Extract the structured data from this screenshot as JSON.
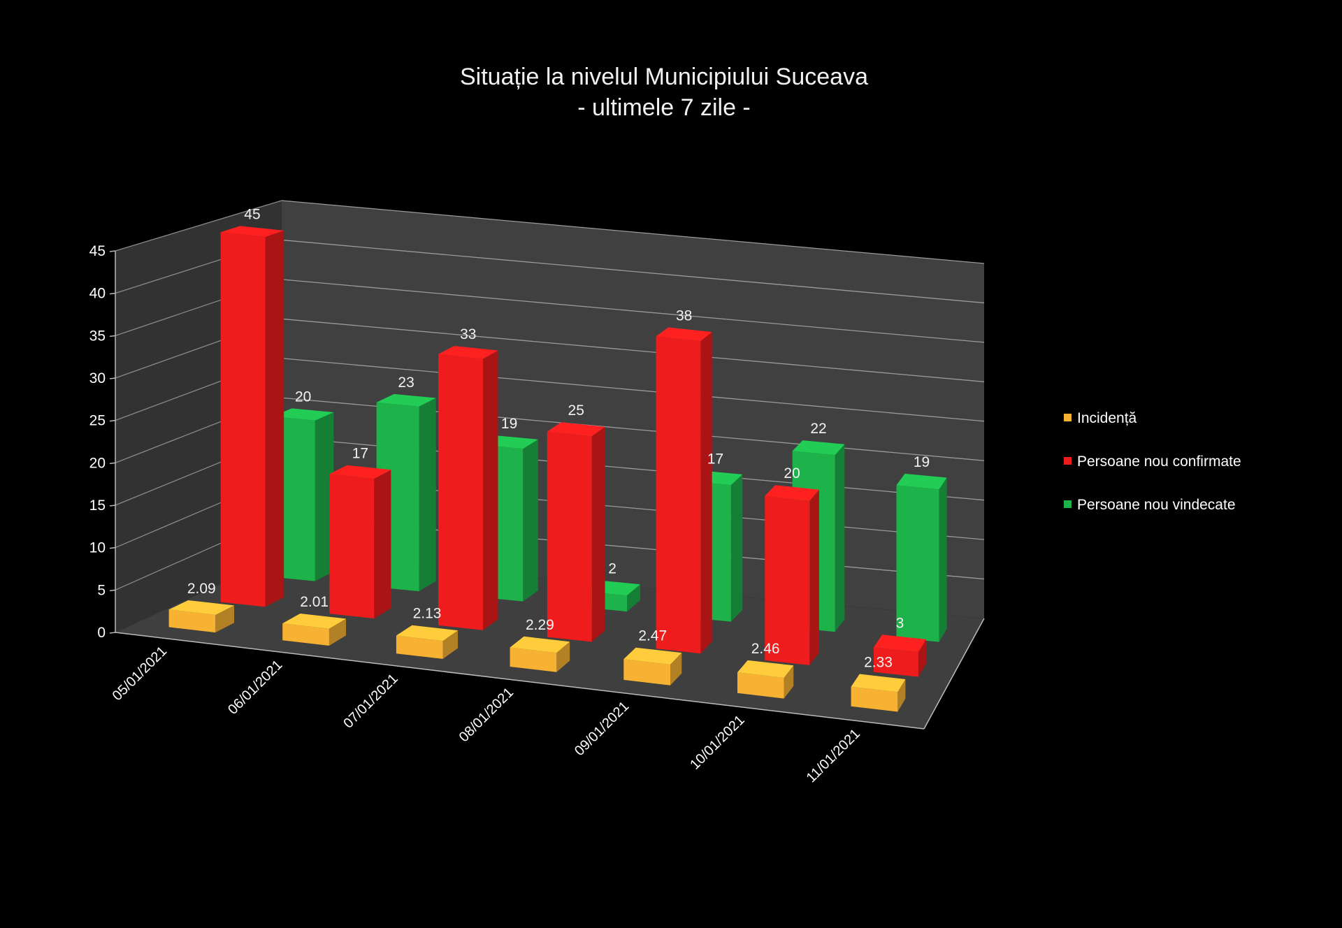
{
  "title": {
    "line1": "Situație la nivelul Municipiului Suceava",
    "line2": "- ultimele 7 zile -"
  },
  "legend": [
    {
      "label": "Incidență",
      "color": "#f7b233"
    },
    {
      "label": "Persoane nou confirmate",
      "color": "#ee1c1c"
    },
    {
      "label": "Persoane nou vindecate",
      "color": "#1db24a"
    }
  ],
  "chart_data": {
    "type": "bar",
    "title": "Situație la nivelul Municipiului Suceava - ultimele 7 zile -",
    "categories": [
      "05/01/2021",
      "06/01/2021",
      "07/01/2021",
      "08/01/2021",
      "09/01/2021",
      "10/01/2021",
      "11/01/2021"
    ],
    "series": [
      {
        "name": "Incidență",
        "values": [
          2.09,
          2.01,
          2.13,
          2.29,
          2.47,
          2.46,
          2.33
        ],
        "labels": [
          "2.09",
          "2.01",
          "2.13",
          "2.29",
          "2.47",
          "2.46",
          "2.33"
        ],
        "color": "#f7b233"
      },
      {
        "name": "Persoane nou confirmate",
        "values": [
          45,
          17,
          33,
          25,
          38,
          20,
          3
        ],
        "labels": [
          "45",
          "17",
          "33",
          "25",
          "38",
          "20",
          "3"
        ],
        "color": "#ee1c1c"
      },
      {
        "name": "Persoane nou vindecate",
        "values": [
          20,
          23,
          19,
          2,
          17,
          22,
          19
        ],
        "labels": [
          "20",
          "23",
          "19",
          "2",
          "17",
          "22",
          "19"
        ],
        "color": "#1db24a"
      }
    ],
    "yticks": [
      "0",
      "5",
      "10",
      "15",
      "20",
      "25",
      "30",
      "35",
      "40",
      "45"
    ],
    "ylim": [
      0,
      45
    ],
    "grid": true,
    "legend_position": "right",
    "style": "3d-perspective"
  }
}
